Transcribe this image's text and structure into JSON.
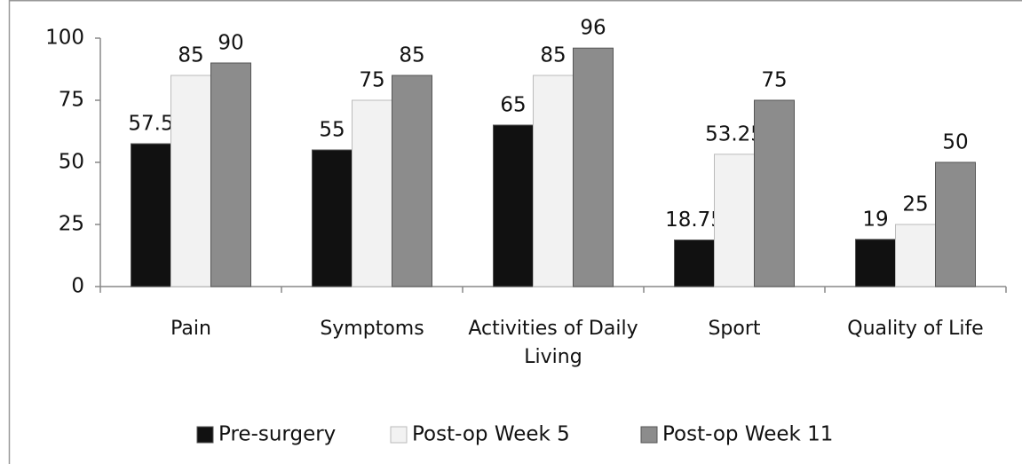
{
  "chart_data": {
    "type": "bar",
    "categories": [
      "Pain",
      "Symptoms",
      "Activities of Daily Living",
      "Sport",
      "Quality of Life"
    ],
    "series": [
      {
        "name": "Pre-surgery",
        "color": "#111111",
        "values": [
          57.5,
          55,
          65,
          18.75,
          19
        ]
      },
      {
        "name": "Post-op Week 5",
        "color": "#f2f2f2",
        "values": [
          85,
          75,
          85,
          53.25,
          25
        ]
      },
      {
        "name": "Post-op Week 11",
        "color": "#8c8c8c",
        "values": [
          90,
          85,
          96,
          75,
          50
        ]
      }
    ],
    "ylim": [
      0,
      100
    ],
    "yticks": [
      0,
      25,
      50,
      75,
      100
    ],
    "grid": false,
    "legend": "bottom"
  }
}
